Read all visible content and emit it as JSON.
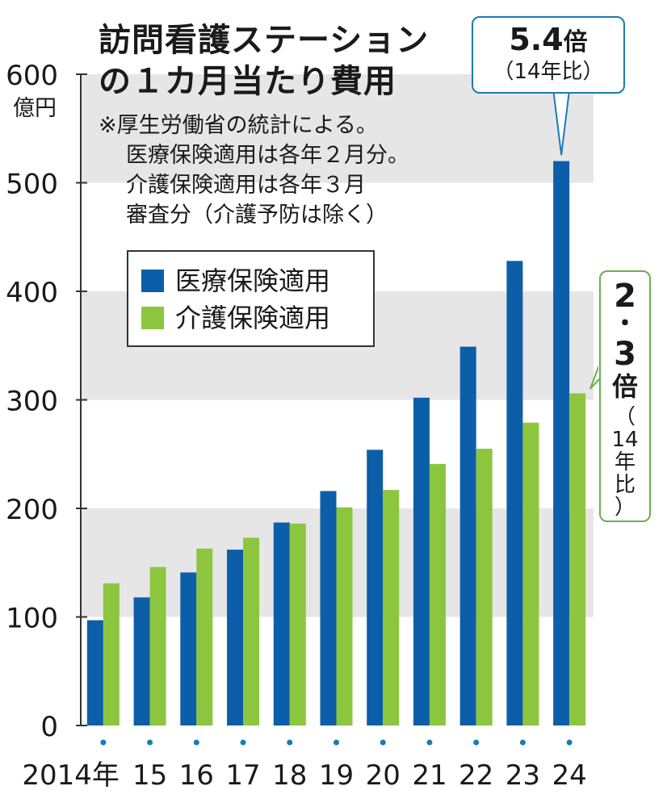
{
  "chart_data": {
    "type": "bar",
    "title_lines": [
      "訪問看護ステーション",
      "の１カ月当たり費用"
    ],
    "note_lines": [
      "※厚生労働省の統計による。",
      "医療保険適用は各年２月分。",
      "介護保険適用は各年３月",
      "審査分（介護予防は除く）"
    ],
    "yunit": "億円",
    "ylim": [
      0,
      600
    ],
    "yticks": [
      "0",
      "100",
      "200",
      "300",
      "400",
      "500",
      "600"
    ],
    "categories": [
      "2014年",
      "15",
      "16",
      "17",
      "18",
      "19",
      "20",
      "21",
      "22",
      "23",
      "24"
    ],
    "series": [
      {
        "name": "医療保険適用",
        "color": "#0d5ea8",
        "values": [
          97,
          118,
          141,
          162,
          187,
          216,
          254,
          302,
          349,
          428,
          520
        ]
      },
      {
        "name": "介護保険適用",
        "color": "#8cc63f",
        "values": [
          131,
          146,
          163,
          173,
          186,
          201,
          217,
          241,
          255,
          279,
          306
        ]
      }
    ],
    "grid_bands": true,
    "legend_position": "upper-left",
    "annotations": {
      "blue_multiplier": "5.4",
      "blue_suffix": "倍",
      "blue_sub": "（14年比）",
      "green_multiplier_parts": [
        "2",
        "・",
        "3",
        "倍"
      ],
      "green_sub": "（\n14\n年\n比\n）"
    },
    "colors": {
      "band": "#e6e6e6",
      "axis": "#333333",
      "blue_callout": "#1a7bb5",
      "green_callout": "#6ab04c"
    }
  }
}
